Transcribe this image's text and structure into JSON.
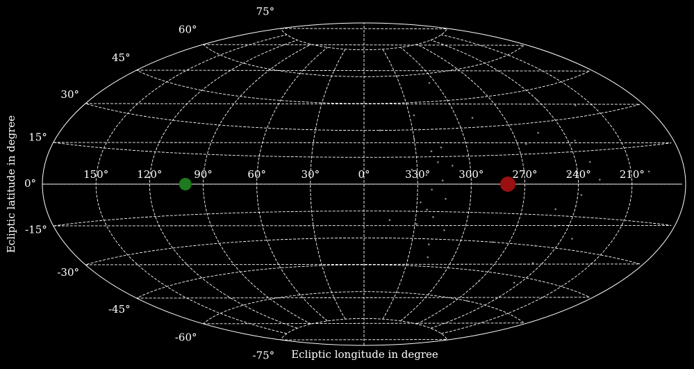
{
  "chart_data": {
    "type": "scatter",
    "projection": "aitoff",
    "xlabel": "Ecliptic longitude in degree",
    "ylabel": "Ecliptic latitude in degree",
    "xticks": [
      {
        "value": 150,
        "label": "150°"
      },
      {
        "value": 120,
        "label": "120°"
      },
      {
        "value": 90,
        "label": "90°"
      },
      {
        "value": 60,
        "label": "60°"
      },
      {
        "value": 30,
        "label": "30°"
      },
      {
        "value": 0,
        "label": "0°"
      },
      {
        "value": 330,
        "label": "330°"
      },
      {
        "value": 300,
        "label": "300°"
      },
      {
        "value": 270,
        "label": "270°"
      },
      {
        "value": 240,
        "label": "240°"
      },
      {
        "value": 210,
        "label": "210°"
      }
    ],
    "yticks": [
      {
        "value": -75,
        "label": "-75°"
      },
      {
        "value": -60,
        "label": "-60°"
      },
      {
        "value": -45,
        "label": "-45°"
      },
      {
        "value": -30,
        "label": "-30°"
      },
      {
        "value": -15,
        "label": "-15°"
      },
      {
        "value": 0,
        "label": "0°"
      },
      {
        "value": 15,
        "label": "15°"
      },
      {
        "value": 30,
        "label": "30°"
      },
      {
        "value": 45,
        "label": "45°"
      },
      {
        "value": 60,
        "label": "60°"
      },
      {
        "value": 75,
        "label": "75°"
      }
    ],
    "grid": true,
    "series": [
      {
        "color": "#8a8a8a",
        "size": 1.3,
        "x": [
          325,
          322,
          318,
          328,
          315,
          320,
          330,
          312,
          326,
          319,
          333,
          316,
          324,
          310,
          329,
          321,
          314,
          327,
          317,
          323,
          245,
          240,
          250,
          236,
          248,
          242,
          253,
          238,
          232,
          246,
          255,
          240,
          251,
          234,
          244,
          228,
          345,
          350,
          300,
          290,
          270,
          265,
          280,
          210,
          220,
          200,
          305,
          260
        ],
        "y": [
          5,
          -3,
          12,
          -10,
          20,
          -18,
          25,
          -25,
          30,
          -33,
          8,
          2,
          -14,
          10,
          -22,
          18,
          -8,
          38,
          -40,
          45,
          5,
          -10,
          15,
          20,
          -20,
          30,
          -30,
          -5,
          10,
          -38,
          25,
          40,
          -12,
          -25,
          -48,
          2,
          -20,
          30,
          -40,
          35,
          -50,
          20,
          -30,
          -15,
          35,
          5,
          55,
          -60
        ]
      },
      {
        "color": "#1e7a1e",
        "size": 9,
        "x": [
          100
        ],
        "y": [
          0
        ]
      },
      {
        "color": "#9a1010",
        "size": 11,
        "x": [
          279.5
        ],
        "y": [
          0
        ]
      }
    ]
  }
}
